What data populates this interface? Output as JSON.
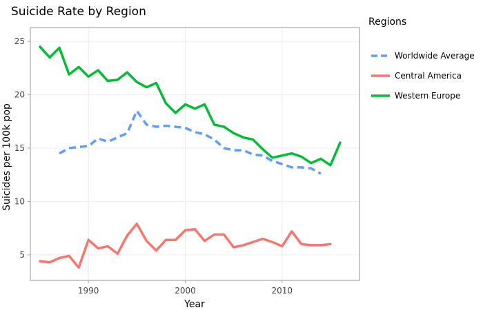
{
  "chart_data": {
    "type": "line",
    "title": "Suicide Rate by Region",
    "xlabel": "Year",
    "ylabel": "Suicides per 100k pop",
    "xlim": [
      1984,
      2018
    ],
    "ylim": [
      2.6,
      26.3
    ],
    "xticks": [
      1990,
      2000,
      2010
    ],
    "yticks": [
      5,
      10,
      15,
      20,
      25
    ],
    "grid": true,
    "legend": {
      "title": "Regions",
      "position": "right"
    },
    "series": [
      {
        "name": "Worldwide Average",
        "color": "#619CFF",
        "dash": "dashed",
        "x": [
          1987,
          1988,
          1989,
          1990,
          1991,
          1992,
          1993,
          1994,
          1995,
          1996,
          1997,
          1998,
          1999,
          2000,
          2001,
          2002,
          2003,
          2004,
          2005,
          2006,
          2007,
          2008,
          2009,
          2010,
          2011,
          2012,
          2013,
          2014
        ],
        "y": [
          14.5,
          15.0,
          15.1,
          15.2,
          15.9,
          15.6,
          16.0,
          16.4,
          18.5,
          17.2,
          17.0,
          17.1,
          17.0,
          16.9,
          16.5,
          16.3,
          15.8,
          15.0,
          14.8,
          14.8,
          14.4,
          14.3,
          13.8,
          13.5,
          13.2,
          13.2,
          13.1,
          12.6
        ]
      },
      {
        "name": "Central America",
        "color": "#F8766D",
        "dash": "solid",
        "x": [
          1985,
          1986,
          1987,
          1988,
          1989,
          1990,
          1991,
          1992,
          1993,
          1994,
          1995,
          1996,
          1997,
          1998,
          1999,
          2000,
          2001,
          2002,
          2003,
          2004,
          2005,
          2006,
          2007,
          2008,
          2009,
          2010,
          2011,
          2012,
          2013,
          2014,
          2015
        ],
        "y": [
          4.4,
          4.3,
          4.7,
          4.9,
          3.8,
          6.4,
          5.6,
          5.8,
          5.1,
          6.8,
          7.9,
          6.3,
          5.4,
          6.4,
          6.4,
          7.3,
          7.4,
          6.3,
          6.9,
          6.9,
          5.7,
          5.9,
          6.2,
          6.5,
          6.2,
          5.8,
          7.2,
          6.0,
          5.9,
          5.9,
          6.0
        ]
      },
      {
        "name": "Western Europe",
        "color": "#00BA38",
        "dash": "solid",
        "x": [
          1985,
          1986,
          1987,
          1988,
          1989,
          1990,
          1991,
          1992,
          1993,
          1994,
          1995,
          1996,
          1997,
          1998,
          1999,
          2000,
          2001,
          2002,
          2003,
          2004,
          2005,
          2006,
          2007,
          2008,
          2009,
          2010,
          2011,
          2012,
          2013,
          2014,
          2015,
          2016
        ],
        "y": [
          24.5,
          23.5,
          24.4,
          21.9,
          22.6,
          21.7,
          22.3,
          21.3,
          21.4,
          22.1,
          21.2,
          20.7,
          21.1,
          19.2,
          18.3,
          19.1,
          18.7,
          19.1,
          17.2,
          17.0,
          16.4,
          16.0,
          15.8,
          14.9,
          14.1,
          14.3,
          14.5,
          14.2,
          13.6,
          14.0,
          13.4,
          15.5
        ]
      }
    ]
  }
}
